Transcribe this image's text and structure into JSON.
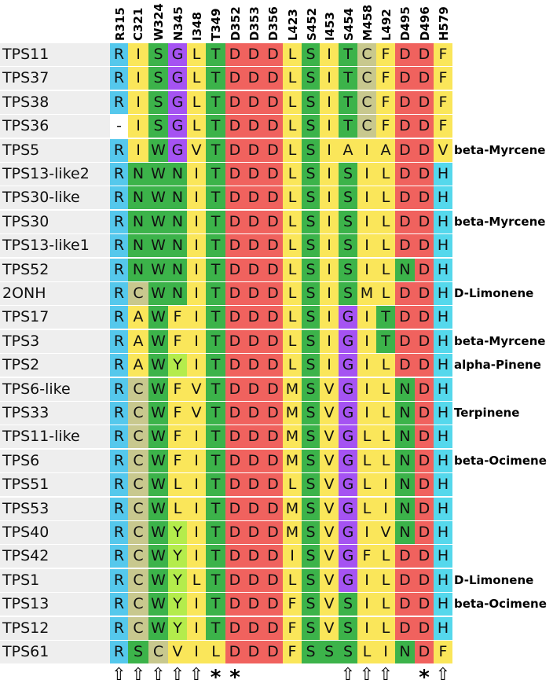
{
  "columns": [
    "R315",
    "C321",
    "W324",
    "N345",
    "I348",
    "T349",
    "D352",
    "D353",
    "D356",
    "L423",
    "S452",
    "I453",
    "S454",
    "M458",
    "L492",
    "D495",
    "D496",
    "H579"
  ],
  "colors": {
    "R": "#55c8ec",
    "H": "#55d8ec",
    "D": "#f0625e",
    "N": "#3cb34a",
    "T": "#3cb34a",
    "S": "#3cb34a",
    "W": "#3cb34a",
    "G": "#a553f2",
    "C": "#c8c88e",
    "Y": "#b4ec4c",
    "F": "#fae65a",
    "I": "#fae65a",
    "L": "#fae65a",
    "V": "#fae65a",
    "M": "#fae65a",
    "A": "#fae65a",
    "-": "#ffffff",
    "name_bg": "#eeeeee"
  },
  "rows": [
    {
      "name": "TPS11",
      "residues": [
        "R",
        "I",
        "S",
        "G",
        "L",
        "T",
        "D",
        "D",
        "D",
        "L",
        "S",
        "I",
        "T",
        "C",
        "F",
        "D",
        "D",
        "F"
      ],
      "product": ""
    },
    {
      "name": "TPS37",
      "residues": [
        "R",
        "I",
        "S",
        "G",
        "L",
        "T",
        "D",
        "D",
        "D",
        "L",
        "S",
        "I",
        "T",
        "C",
        "F",
        "D",
        "D",
        "F"
      ],
      "product": ""
    },
    {
      "name": "TPS38",
      "residues": [
        "R",
        "I",
        "S",
        "G",
        "L",
        "T",
        "D",
        "D",
        "D",
        "L",
        "S",
        "I",
        "T",
        "C",
        "F",
        "D",
        "D",
        "F"
      ],
      "product": ""
    },
    {
      "name": "TPS36",
      "residues": [
        "-",
        "I",
        "S",
        "G",
        "L",
        "T",
        "D",
        "D",
        "D",
        "L",
        "S",
        "I",
        "T",
        "C",
        "F",
        "D",
        "D",
        "F"
      ],
      "product": ""
    },
    {
      "name": "TPS5",
      "residues": [
        "R",
        "I",
        "W",
        "G",
        "V",
        "T",
        "D",
        "D",
        "D",
        "L",
        "S",
        "I",
        "A",
        "I",
        "A",
        "D",
        "D",
        "V"
      ],
      "product": "beta-Myrcene"
    },
    {
      "name": "TPS13-like2",
      "residues": [
        "R",
        "N",
        "W",
        "N",
        "I",
        "T",
        "D",
        "D",
        "D",
        "L",
        "S",
        "I",
        "S",
        "I",
        "L",
        "D",
        "D",
        "H"
      ],
      "product": ""
    },
    {
      "name": "TPS30-like",
      "residues": [
        "R",
        "N",
        "W",
        "N",
        "I",
        "T",
        "D",
        "D",
        "D",
        "L",
        "S",
        "I",
        "S",
        "I",
        "L",
        "D",
        "D",
        "H"
      ],
      "product": ""
    },
    {
      "name": "TPS30",
      "residues": [
        "R",
        "N",
        "W",
        "N",
        "I",
        "T",
        "D",
        "D",
        "D",
        "L",
        "S",
        "I",
        "S",
        "I",
        "L",
        "D",
        "D",
        "H"
      ],
      "product": "beta-Myrcene"
    },
    {
      "name": "TPS13-like1",
      "residues": [
        "R",
        "N",
        "W",
        "N",
        "I",
        "T",
        "D",
        "D",
        "D",
        "L",
        "S",
        "I",
        "S",
        "I",
        "L",
        "D",
        "D",
        "H"
      ],
      "product": ""
    },
    {
      "name": "TPS52",
      "residues": [
        "R",
        "N",
        "W",
        "N",
        "I",
        "T",
        "D",
        "D",
        "D",
        "L",
        "S",
        "I",
        "S",
        "I",
        "L",
        "N",
        "D",
        "H"
      ],
      "product": ""
    },
    {
      "name": "2ONH",
      "residues": [
        "R",
        "C",
        "W",
        "N",
        "I",
        "T",
        "D",
        "D",
        "D",
        "L",
        "S",
        "I",
        "S",
        "M",
        "L",
        "D",
        "D",
        "H"
      ],
      "product": "D-Limonene"
    },
    {
      "name": "TPS17",
      "residues": [
        "R",
        "A",
        "W",
        "F",
        "I",
        "T",
        "D",
        "D",
        "D",
        "L",
        "S",
        "I",
        "G",
        "I",
        "T",
        "D",
        "D",
        "H"
      ],
      "product": ""
    },
    {
      "name": "TPS3",
      "residues": [
        "R",
        "A",
        "W",
        "F",
        "I",
        "T",
        "D",
        "D",
        "D",
        "L",
        "S",
        "I",
        "G",
        "I",
        "T",
        "D",
        "D",
        "H"
      ],
      "product": "beta-Myrcene"
    },
    {
      "name": "TPS2",
      "residues": [
        "R",
        "A",
        "W",
        "Y",
        "I",
        "T",
        "D",
        "D",
        "D",
        "L",
        "S",
        "I",
        "G",
        "I",
        "L",
        "D",
        "D",
        "H"
      ],
      "product": "alpha-Pinene"
    },
    {
      "name": "TPS6-like",
      "residues": [
        "R",
        "C",
        "W",
        "F",
        "V",
        "T",
        "D",
        "D",
        "D",
        "M",
        "S",
        "V",
        "G",
        "I",
        "L",
        "N",
        "D",
        "H"
      ],
      "product": ""
    },
    {
      "name": "TPS33",
      "residues": [
        "R",
        "C",
        "W",
        "F",
        "V",
        "T",
        "D",
        "D",
        "D",
        "M",
        "S",
        "V",
        "G",
        "I",
        "L",
        "N",
        "D",
        "H"
      ],
      "product": "Terpinene"
    },
    {
      "name": "TPS11-like",
      "residues": [
        "R",
        "C",
        "W",
        "F",
        "I",
        "T",
        "D",
        "D",
        "D",
        "M",
        "S",
        "V",
        "G",
        "L",
        "L",
        "N",
        "D",
        "H"
      ],
      "product": ""
    },
    {
      "name": "TPS6",
      "residues": [
        "R",
        "C",
        "W",
        "F",
        "I",
        "T",
        "D",
        "D",
        "D",
        "M",
        "S",
        "V",
        "G",
        "L",
        "L",
        "N",
        "D",
        "H"
      ],
      "product": "beta-Ocimene"
    },
    {
      "name": "TPS51",
      "residues": [
        "R",
        "C",
        "W",
        "L",
        "I",
        "T",
        "D",
        "D",
        "D",
        "L",
        "S",
        "V",
        "G",
        "L",
        "I",
        "N",
        "D",
        "H"
      ],
      "product": ""
    },
    {
      "name": "TPS53",
      "residues": [
        "R",
        "C",
        "W",
        "L",
        "I",
        "T",
        "D",
        "D",
        "D",
        "M",
        "S",
        "V",
        "G",
        "L",
        "I",
        "N",
        "D",
        "H"
      ],
      "product": ""
    },
    {
      "name": "TPS40",
      "residues": [
        "R",
        "C",
        "W",
        "Y",
        "I",
        "T",
        "D",
        "D",
        "D",
        "M",
        "S",
        "V",
        "G",
        "I",
        "V",
        "N",
        "D",
        "H"
      ],
      "product": ""
    },
    {
      "name": "TPS42",
      "residues": [
        "R",
        "C",
        "W",
        "Y",
        "I",
        "T",
        "D",
        "D",
        "D",
        "I",
        "S",
        "V",
        "G",
        "F",
        "L",
        "D",
        "D",
        "H"
      ],
      "product": ""
    },
    {
      "name": "TPS1",
      "residues": [
        "R",
        "C",
        "W",
        "Y",
        "L",
        "T",
        "D",
        "D",
        "D",
        "L",
        "S",
        "V",
        "G",
        "I",
        "L",
        "D",
        "D",
        "H"
      ],
      "product": "D-Limonene"
    },
    {
      "name": "TPS13",
      "residues": [
        "R",
        "C",
        "W",
        "Y",
        "I",
        "T",
        "D",
        "D",
        "D",
        "F",
        "S",
        "V",
        "S",
        "I",
        "L",
        "D",
        "D",
        "H"
      ],
      "product": "beta-Ocimene"
    },
    {
      "name": "TPS12",
      "residues": [
        "R",
        "C",
        "W",
        "Y",
        "I",
        "T",
        "D",
        "D",
        "D",
        "F",
        "S",
        "V",
        "S",
        "I",
        "L",
        "D",
        "D",
        "H"
      ],
      "product": ""
    },
    {
      "name": "TPS61",
      "residues": [
        "R",
        "S",
        "C",
        "V",
        "I",
        "L",
        "D",
        "D",
        "D",
        "F",
        "S",
        "S",
        "S",
        "L",
        "I",
        "N",
        "D",
        "F"
      ],
      "product": ""
    }
  ],
  "markers": [
    "⇧",
    "⇧",
    "⇧",
    "⇧",
    "⇧",
    "*",
    "*",
    "",
    "",
    "",
    "",
    "",
    "⇧",
    "⇧",
    "⇧",
    "",
    "*",
    "⇧"
  ]
}
